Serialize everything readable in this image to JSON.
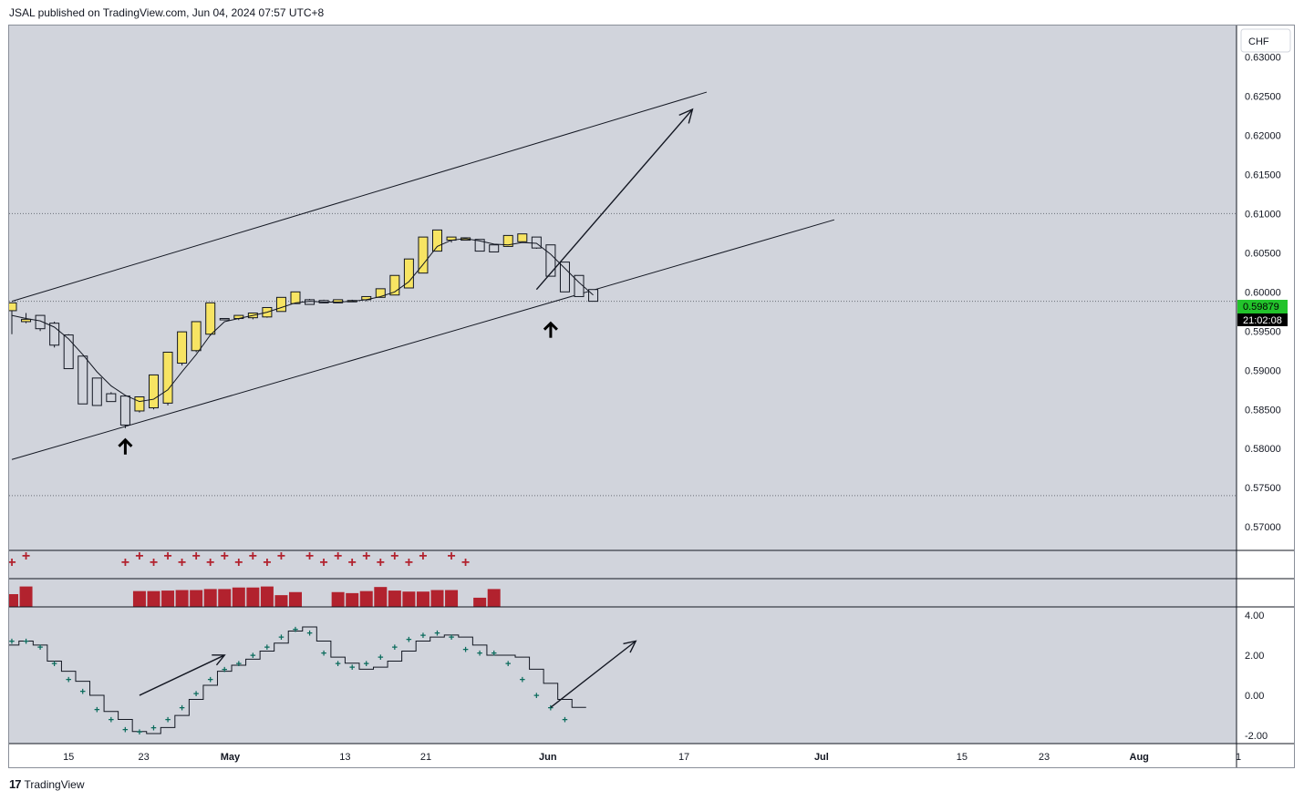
{
  "header": {
    "publish_line": "JSAL published on TradingView.com, Jun 04, 2024 07:57 UTC+8"
  },
  "footer": {
    "brand": "TradingView",
    "logo_icon": "tradingview-logo-icon"
  },
  "colors": {
    "background": "#d1d4dc",
    "bull_candle": "#f7e463",
    "bear_candle": "#d1d4dc",
    "candle_border": "#131722",
    "last_price_bg": "#22c32b",
    "countdown_bg": "#000000",
    "histogram": "#b2222e",
    "osc_marker": "#0a6b5c"
  },
  "price_scale": {
    "currency": "CHF",
    "ticks": [
      "0.63000",
      "0.62500",
      "0.62000",
      "0.61500",
      "0.61000",
      "0.60500",
      "0.60000",
      "0.59500",
      "0.59000",
      "0.58500",
      "0.58000",
      "0.57500",
      "0.57000"
    ],
    "last_price": "0.59879",
    "countdown": "21:02:08"
  },
  "osc_scale": {
    "ticks": [
      "4.00",
      "2.00",
      "0.00",
      "-2.00"
    ]
  },
  "time_axis": {
    "ticks": [
      "15",
      "23",
      "May",
      "13",
      "21",
      "Jun",
      "17",
      "Jul",
      "15",
      "23",
      "Aug",
      "1"
    ]
  },
  "chart_data": [
    {
      "type": "candlestick",
      "pane": "main",
      "symbol_currency": "CHF",
      "ylim": [
        0.567,
        0.634
      ],
      "candles": [
        {
          "o": 0.5976,
          "h": 0.5986,
          "l": 0.5946,
          "c": 0.5986
        },
        {
          "o": 0.5962,
          "h": 0.5973,
          "l": 0.596,
          "c": 0.5965
        },
        {
          "o": 0.597,
          "h": 0.597,
          "l": 0.595,
          "c": 0.5953
        },
        {
          "o": 0.596,
          "h": 0.5962,
          "l": 0.5929,
          "c": 0.5932
        },
        {
          "o": 0.5945,
          "h": 0.5946,
          "l": 0.5902,
          "c": 0.5902
        },
        {
          "o": 0.5918,
          "h": 0.5918,
          "l": 0.5857,
          "c": 0.5857
        },
        {
          "o": 0.589,
          "h": 0.589,
          "l": 0.5855,
          "c": 0.5855
        },
        {
          "o": 0.587,
          "h": 0.5872,
          "l": 0.586,
          "c": 0.586
        },
        {
          "o": 0.5867,
          "h": 0.5867,
          "l": 0.5826,
          "c": 0.583
        },
        {
          "o": 0.5848,
          "h": 0.5866,
          "l": 0.5846,
          "c": 0.5866
        },
        {
          "o": 0.5852,
          "h": 0.5894,
          "l": 0.585,
          "c": 0.5894
        },
        {
          "o": 0.5858,
          "h": 0.5923,
          "l": 0.5855,
          "c": 0.5923
        },
        {
          "o": 0.5909,
          "h": 0.5949,
          "l": 0.5906,
          "c": 0.5949
        },
        {
          "o": 0.5925,
          "h": 0.5962,
          "l": 0.5923,
          "c": 0.5962
        },
        {
          "o": 0.5946,
          "h": 0.5986,
          "l": 0.5944,
          "c": 0.5986
        },
        {
          "o": 0.5966,
          "h": 0.5966,
          "l": 0.5964,
          "c": 0.5965
        },
        {
          "o": 0.5966,
          "h": 0.597,
          "l": 0.5964,
          "c": 0.597
        },
        {
          "o": 0.5967,
          "h": 0.5973,
          "l": 0.5965,
          "c": 0.5973
        },
        {
          "o": 0.5968,
          "h": 0.598,
          "l": 0.5967,
          "c": 0.598
        },
        {
          "o": 0.5975,
          "h": 0.5993,
          "l": 0.5975,
          "c": 0.5993
        },
        {
          "o": 0.5985,
          "h": 0.6,
          "l": 0.5985,
          "c": 0.6
        },
        {
          "o": 0.599,
          "h": 0.5991,
          "l": 0.5984,
          "c": 0.5984
        },
        {
          "o": 0.5989,
          "h": 0.599,
          "l": 0.5986,
          "c": 0.5986
        },
        {
          "o": 0.5986,
          "h": 0.599,
          "l": 0.5986,
          "c": 0.599
        },
        {
          "o": 0.5989,
          "h": 0.599,
          "l": 0.5987,
          "c": 0.5989
        },
        {
          "o": 0.599,
          "h": 0.5994,
          "l": 0.5988,
          "c": 0.5994
        },
        {
          "o": 0.5993,
          "h": 0.6004,
          "l": 0.5993,
          "c": 0.6004
        },
        {
          "o": 0.5996,
          "h": 0.6021,
          "l": 0.5996,
          "c": 0.6021
        },
        {
          "o": 0.6005,
          "h": 0.6042,
          "l": 0.6005,
          "c": 0.6042
        },
        {
          "o": 0.6024,
          "h": 0.607,
          "l": 0.6024,
          "c": 0.607
        },
        {
          "o": 0.6052,
          "h": 0.6079,
          "l": 0.6052,
          "c": 0.6079
        },
        {
          "o": 0.6066,
          "h": 0.607,
          "l": 0.6063,
          "c": 0.607
        },
        {
          "o": 0.6066,
          "h": 0.6069,
          "l": 0.6066,
          "c": 0.6069
        },
        {
          "o": 0.6067,
          "h": 0.6067,
          "l": 0.6052,
          "c": 0.6052
        },
        {
          "o": 0.606,
          "h": 0.606,
          "l": 0.6051,
          "c": 0.6051
        },
        {
          "o": 0.6058,
          "h": 0.6072,
          "l": 0.6058,
          "c": 0.6072
        },
        {
          "o": 0.6064,
          "h": 0.6074,
          "l": 0.6064,
          "c": 0.6074
        },
        {
          "o": 0.607,
          "h": 0.607,
          "l": 0.6055,
          "c": 0.6056
        },
        {
          "o": 0.606,
          "h": 0.606,
          "l": 0.602,
          "c": 0.602
        },
        {
          "o": 0.6038,
          "h": 0.6038,
          "l": 0.6,
          "c": 0.6
        },
        {
          "o": 0.6021,
          "h": 0.6021,
          "l": 0.5994,
          "c": 0.5994
        },
        {
          "o": 0.6003,
          "h": 0.6003,
          "l": 0.5988,
          "c": 0.5988
        }
      ],
      "moving_average": [
        0.597,
        0.5966,
        0.5963,
        0.5955,
        0.594,
        0.592,
        0.5898,
        0.588,
        0.5868,
        0.586,
        0.5863,
        0.5875,
        0.5898,
        0.592,
        0.5945,
        0.5962,
        0.5966,
        0.597,
        0.5974,
        0.598,
        0.5986,
        0.5988,
        0.5987,
        0.5987,
        0.5988,
        0.599,
        0.5994,
        0.6,
        0.6013,
        0.6035,
        0.6058,
        0.6066,
        0.6068,
        0.6065,
        0.6061,
        0.606,
        0.6063,
        0.6062,
        0.6048,
        0.603,
        0.6012,
        0.5996
      ],
      "horizontal_levels": [
        0.61,
        0.5988,
        0.574
      ],
      "trendlines": [
        {
          "name": "channel-upper",
          "points": [
            [
              0,
              0.5988
            ],
            [
              49,
              0.6255
            ]
          ]
        },
        {
          "name": "channel-lower",
          "points": [
            [
              0,
              0.5786
            ],
            [
              58,
              0.6092
            ]
          ]
        }
      ],
      "arrows": [
        {
          "kind": "up-marker",
          "at": [
            8,
            0.5811
          ]
        },
        {
          "kind": "up-marker",
          "at": [
            38,
            0.596
          ]
        },
        {
          "kind": "projection",
          "from": [
            37,
            0.6003
          ],
          "to": [
            48,
            0.6233
          ]
        }
      ]
    },
    {
      "type": "histogram",
      "pane": "signals",
      "markers_at_bar": [
        0,
        1,
        8,
        9,
        10,
        11,
        12,
        13,
        14,
        15,
        16,
        17,
        18,
        19,
        21,
        22,
        23,
        24,
        25,
        26,
        27,
        28,
        29,
        31,
        32
      ],
      "bars": [
        0.5,
        0.8,
        0,
        0,
        0,
        0,
        0,
        0,
        0,
        0.62,
        0.62,
        0.64,
        0.66,
        0.66,
        0.7,
        0.7,
        0.76,
        0.76,
        0.8,
        0.46,
        0.58,
        0,
        0,
        0.58,
        0.54,
        0.62,
        0.78,
        0.64,
        0.6,
        0.6,
        0.66,
        0.66,
        0,
        0.36,
        0.7
      ]
    },
    {
      "type": "line",
      "pane": "oscillator",
      "ylim": [
        -2.4,
        4.4
      ],
      "step_line": [
        2.5,
        2.7,
        2.5,
        1.7,
        1.2,
        0.7,
        0.0,
        -0.8,
        -1.2,
        -1.8,
        -1.9,
        -1.6,
        -1.0,
        -0.2,
        0.5,
        1.2,
        1.5,
        1.8,
        2.2,
        2.6,
        3.2,
        3.4,
        2.7,
        1.9,
        1.6,
        1.3,
        1.4,
        1.7,
        2.2,
        2.7,
        2.9,
        3.0,
        2.9,
        2.5,
        2.0,
        2.0,
        1.9,
        1.3,
        0.6,
        -0.2,
        -0.6
      ],
      "markers": [
        2.7,
        2.7,
        2.4,
        1.6,
        0.8,
        0.2,
        -0.7,
        -1.2,
        -1.7,
        -1.8,
        -1.6,
        -1.2,
        -0.6,
        0.1,
        0.8,
        1.3,
        1.6,
        2.0,
        2.4,
        2.9,
        3.3,
        3.1,
        2.1,
        1.6,
        1.4,
        1.6,
        1.9,
        2.4,
        2.8,
        3.0,
        3.1,
        2.9,
        2.3,
        2.1,
        2.1,
        1.6,
        0.8,
        0.0,
        -0.6,
        -1.2
      ],
      "arrows": [
        {
          "from": [
            9,
            0.0
          ],
          "to": [
            15,
            2.0
          ]
        },
        {
          "from": [
            38,
            -0.6
          ],
          "to": [
            44,
            2.7
          ]
        }
      ]
    }
  ]
}
